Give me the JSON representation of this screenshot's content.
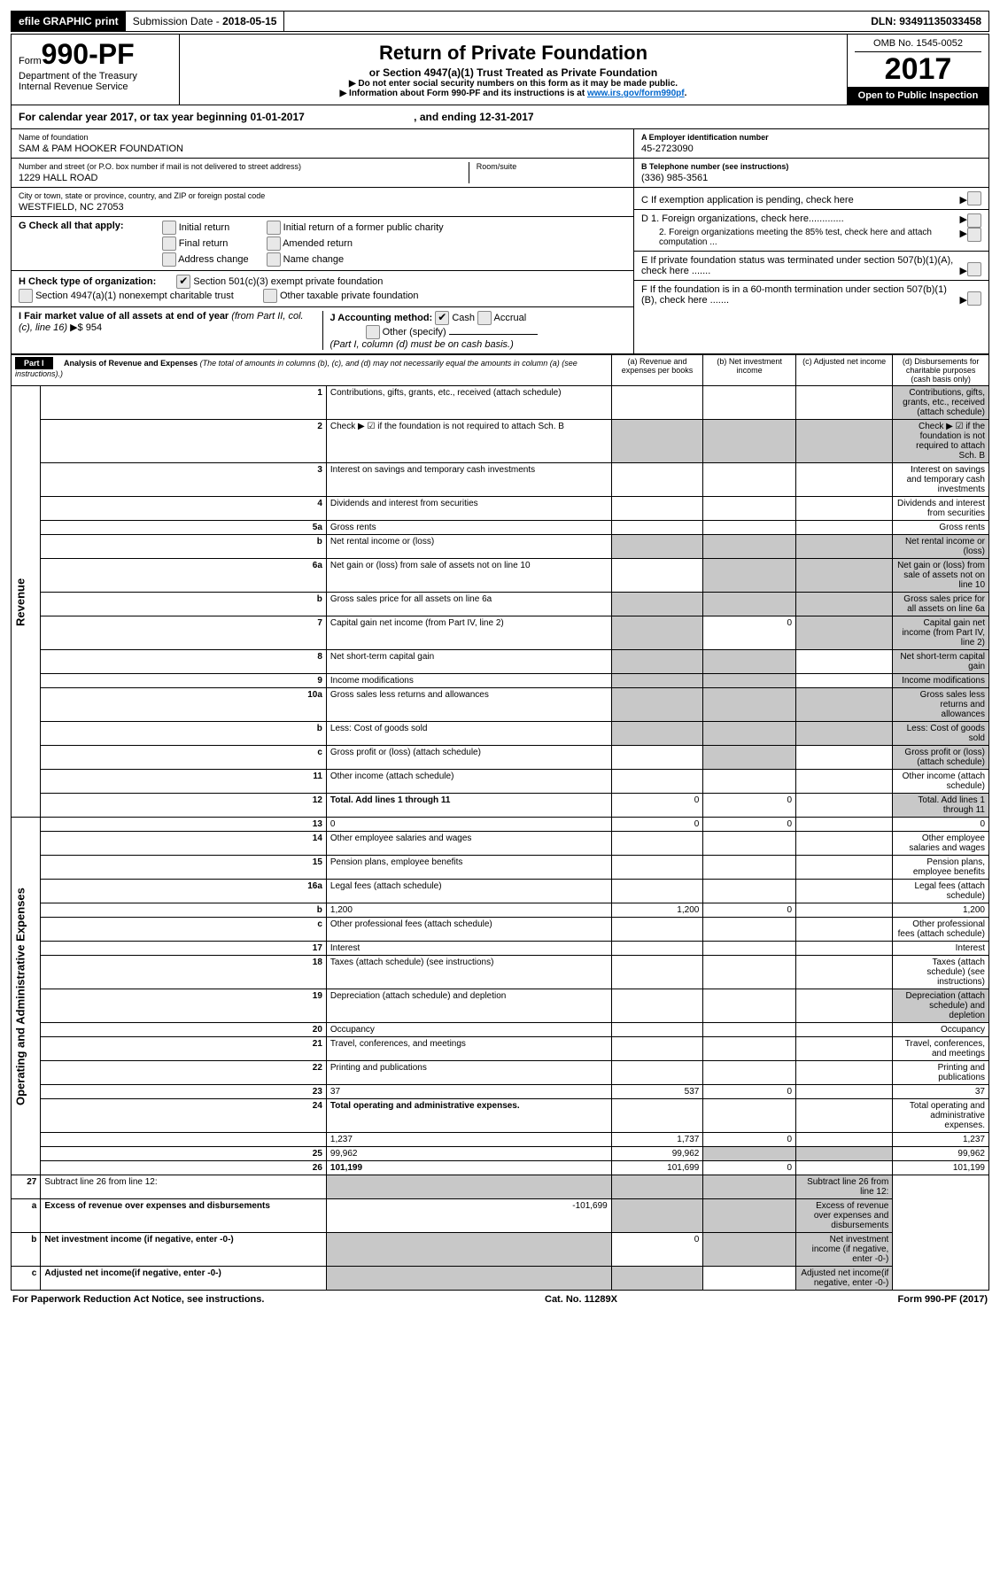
{
  "top": {
    "efile": "efile GRAPHIC print",
    "subdate_label": "Submission Date - ",
    "subdate": "2018-05-15",
    "dln_label": "DLN: ",
    "dln": "93491135033458"
  },
  "header": {
    "form_prefix": "Form",
    "form_number": "990-PF",
    "dept": "Department of the Treasury",
    "irs": "Internal Revenue Service",
    "title": "Return of Private Foundation",
    "subtitle": "or Section 4947(a)(1) Trust Treated as Private Foundation",
    "warn1": "▶ Do not enter social security numbers on this form as it may be made public.",
    "warn2_prefix": "▶ Information about Form 990-PF and its instructions is at ",
    "warn2_link": "www.irs.gov/form990pf",
    "omb": "OMB No. 1545-0052",
    "year": "2017",
    "open": "Open to Public Inspection"
  },
  "calyear": {
    "text": "For calendar year 2017, or tax year beginning 01-01-2017",
    "ending": ", and ending 12-31-2017"
  },
  "entity": {
    "name_lbl": "Name of foundation",
    "name": "SAM & PAM HOOKER FOUNDATION",
    "street_lbl": "Number and street (or P.O. box number if mail is not delivered to street address)",
    "room_lbl": "Room/suite",
    "street": "1229 HALL ROAD",
    "city_lbl": "City or town, state or province, country, and ZIP or foreign postal code",
    "city": "WESTFIELD, NC  27053",
    "ein_lbl": "A Employer identification number",
    "ein": "45-2723090",
    "phone_lbl": "B Telephone number (see instructions)",
    "phone": "(336) 985-3561",
    "c_lbl": "C  If exemption application is pending, check here",
    "d1": "D 1. Foreign organizations, check here.............",
    "d2": "2. Foreign organizations meeting the 85% test, check here and attach computation ...",
    "e_lbl": "E  If private foundation status was terminated under section 507(b)(1)(A), check here .......",
    "f_lbl": "F  If the foundation is in a 60-month termination under section 507(b)(1)(B), check here .......",
    "g_lbl": "G Check all that apply:",
    "g_opts": [
      "Initial return",
      "Initial return of a former public charity",
      "Final return",
      "Amended return",
      "Address change",
      "Name change"
    ],
    "h_lbl": "H Check type of organization:",
    "h_opts": [
      "Section 501(c)(3) exempt private foundation",
      "Section 4947(a)(1) nonexempt charitable trust",
      "Other taxable private foundation"
    ],
    "i_lbl": "I Fair market value of all assets at end of year ",
    "i_italic": "(from Part II, col. (c), line 16)",
    "i_val": "▶$  954",
    "j_lbl": "J Accounting method:",
    "j_cash": "Cash",
    "j_accrual": "Accrual",
    "j_other": "Other (specify)",
    "j_note": "(Part I, column (d) must be on cash basis.)"
  },
  "part1": {
    "label": "Part I",
    "title": "Analysis of Revenue and Expenses ",
    "note": "(The total of amounts in columns (b), (c), and (d) may not necessarily equal the amounts in column (a) (see instructions).)",
    "cols": {
      "a": "(a)     Revenue and expenses per books",
      "b": "(b)     Net investment income",
      "c": "(c)     Adjusted net income",
      "d": "(d)     Disbursements for charitable purposes (cash basis only)"
    },
    "side_rev": "Revenue",
    "side_exp": "Operating and Administrative Expenses",
    "rows": [
      {
        "n": "1",
        "d": "Contributions, gifts, grants, etc., received (attach schedule)",
        "shade_bcd": false,
        "shade_d": true
      },
      {
        "n": "2",
        "d": "Check ▶ ☑ if the foundation is not required to attach Sch. B",
        "shade_all": true
      },
      {
        "n": "3",
        "d": "Interest on savings and temporary cash investments"
      },
      {
        "n": "4",
        "d": "Dividends and interest from securities"
      },
      {
        "n": "5a",
        "d": "Gross rents"
      },
      {
        "n": "b",
        "d": "Net rental income or (loss)",
        "shade_all": true,
        "underline": true
      },
      {
        "n": "6a",
        "d": "Net gain or (loss) from sale of assets not on line 10",
        "shade_bcd": true
      },
      {
        "n": "b",
        "d": "Gross sales price for all assets on line 6a",
        "shade_all": true,
        "underline": true
      },
      {
        "n": "7",
        "d": "Capital gain net income (from Part IV, line 2)",
        "b": "0",
        "shade_a": true,
        "shade_cd": true
      },
      {
        "n": "8",
        "d": "Net short-term capital gain",
        "shade_ab": true,
        "shade_d": true
      },
      {
        "n": "9",
        "d": "Income modifications",
        "shade_ab": true,
        "shade_d": true
      },
      {
        "n": "10a",
        "d": "Gross sales less returns and allowances",
        "shade_all": true
      },
      {
        "n": "b",
        "d": "Less: Cost of goods sold",
        "shade_all": true
      },
      {
        "n": "c",
        "d": "Gross profit or (loss) (attach schedule)",
        "shade_b": true,
        "shade_d": true
      },
      {
        "n": "11",
        "d": "Other income (attach schedule)"
      },
      {
        "n": "12",
        "d": "Total. Add lines 1 through 11",
        "bold": true,
        "a": "0",
        "b": "0",
        "shade_d": true
      }
    ],
    "exp_rows": [
      {
        "n": "13",
        "d": "0",
        "a": "0",
        "b": "0"
      },
      {
        "n": "14",
        "d": "Other employee salaries and wages"
      },
      {
        "n": "15",
        "d": "Pension plans, employee benefits"
      },
      {
        "n": "16a",
        "d": "Legal fees (attach schedule)"
      },
      {
        "n": "b",
        "d": "1,200",
        "a": "1,200",
        "b": "0"
      },
      {
        "n": "c",
        "d": "Other professional fees (attach schedule)"
      },
      {
        "n": "17",
        "d": "Interest"
      },
      {
        "n": "18",
        "d": "Taxes (attach schedule) (see instructions)"
      },
      {
        "n": "19",
        "d": "Depreciation (attach schedule) and depletion",
        "shade_d": true
      },
      {
        "n": "20",
        "d": "Occupancy"
      },
      {
        "n": "21",
        "d": "Travel, conferences, and meetings"
      },
      {
        "n": "22",
        "d": "Printing and publications"
      },
      {
        "n": "23",
        "d": "37",
        "a": "537",
        "b": "0"
      },
      {
        "n": "24",
        "d": "Total operating and administrative expenses.",
        "bold": true
      },
      {
        "n": "",
        "d": "1,237",
        "a": "1,737",
        "b": "0"
      },
      {
        "n": "25",
        "d": "99,962",
        "a": "99,962",
        "shade_bc": true
      },
      {
        "n": "26",
        "d": "101,199",
        "bold": true,
        "a": "101,699",
        "b": "0"
      }
    ],
    "sub_rows": [
      {
        "n": "27",
        "d": "Subtract line 26 from line 12:",
        "shade_all": true
      },
      {
        "n": "a",
        "d": "Excess of revenue over expenses and disbursements",
        "bold": true,
        "a": "-101,699",
        "shade_bcd": true
      },
      {
        "n": "b",
        "d": "Net investment income (if negative, enter -0-)",
        "bold": true,
        "b": "0",
        "shade_a": true,
        "shade_cd": true
      },
      {
        "n": "c",
        "d": "Adjusted net income(if negative, enter -0-)",
        "bold": true,
        "shade_ab": true,
        "shade_d": true
      }
    ]
  },
  "footer": {
    "left": "For Paperwork Reduction Act Notice, see instructions.",
    "mid": "Cat. No. 11289X",
    "right": "Form 990-PF (2017)"
  }
}
